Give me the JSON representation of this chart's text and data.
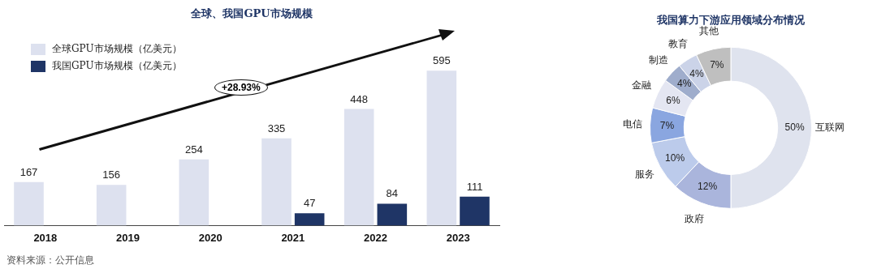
{
  "chart_data": [
    {
      "type": "bar",
      "title": "全球、我国GPU市场规模",
      "categories": [
        "2018",
        "2019",
        "2020",
        "2021",
        "2022",
        "2023"
      ],
      "series": [
        {
          "name": "全球GPU市场规模（亿美元）",
          "color": "#dde1ef",
          "values": [
            167,
            156,
            254,
            335,
            448,
            595
          ]
        },
        {
          "name": "我国GPU市场规模（亿美元）",
          "color": "#1f3566",
          "values": [
            null,
            null,
            null,
            47,
            84,
            111
          ]
        }
      ],
      "data_labels": true,
      "legend": "top left",
      "grid": false,
      "annotations": [
        "+28.93%",
        "资料来源：公开信息"
      ]
    },
    {
      "type": "donut",
      "title": "我国算力下游应用领域分布情况",
      "categories": [
        "互联网",
        "政府",
        "服务",
        "电信",
        "金融",
        "制造",
        "教育",
        "其他"
      ],
      "values": [
        50,
        12,
        10,
        7,
        6,
        4,
        4,
        7
      ],
      "value_labels": [
        "50%",
        "12%",
        "10%",
        "7%",
        "6%",
        "4%",
        "4%",
        "7%"
      ],
      "colors": [
        "#dfe3ee",
        "#aab5dc",
        "#bccbeb",
        "#8aa6e0",
        "#e4e6f2",
        "#9fadcc",
        "#cbd3e8",
        "#bfbfbf"
      ],
      "legend": false
    }
  ]
}
